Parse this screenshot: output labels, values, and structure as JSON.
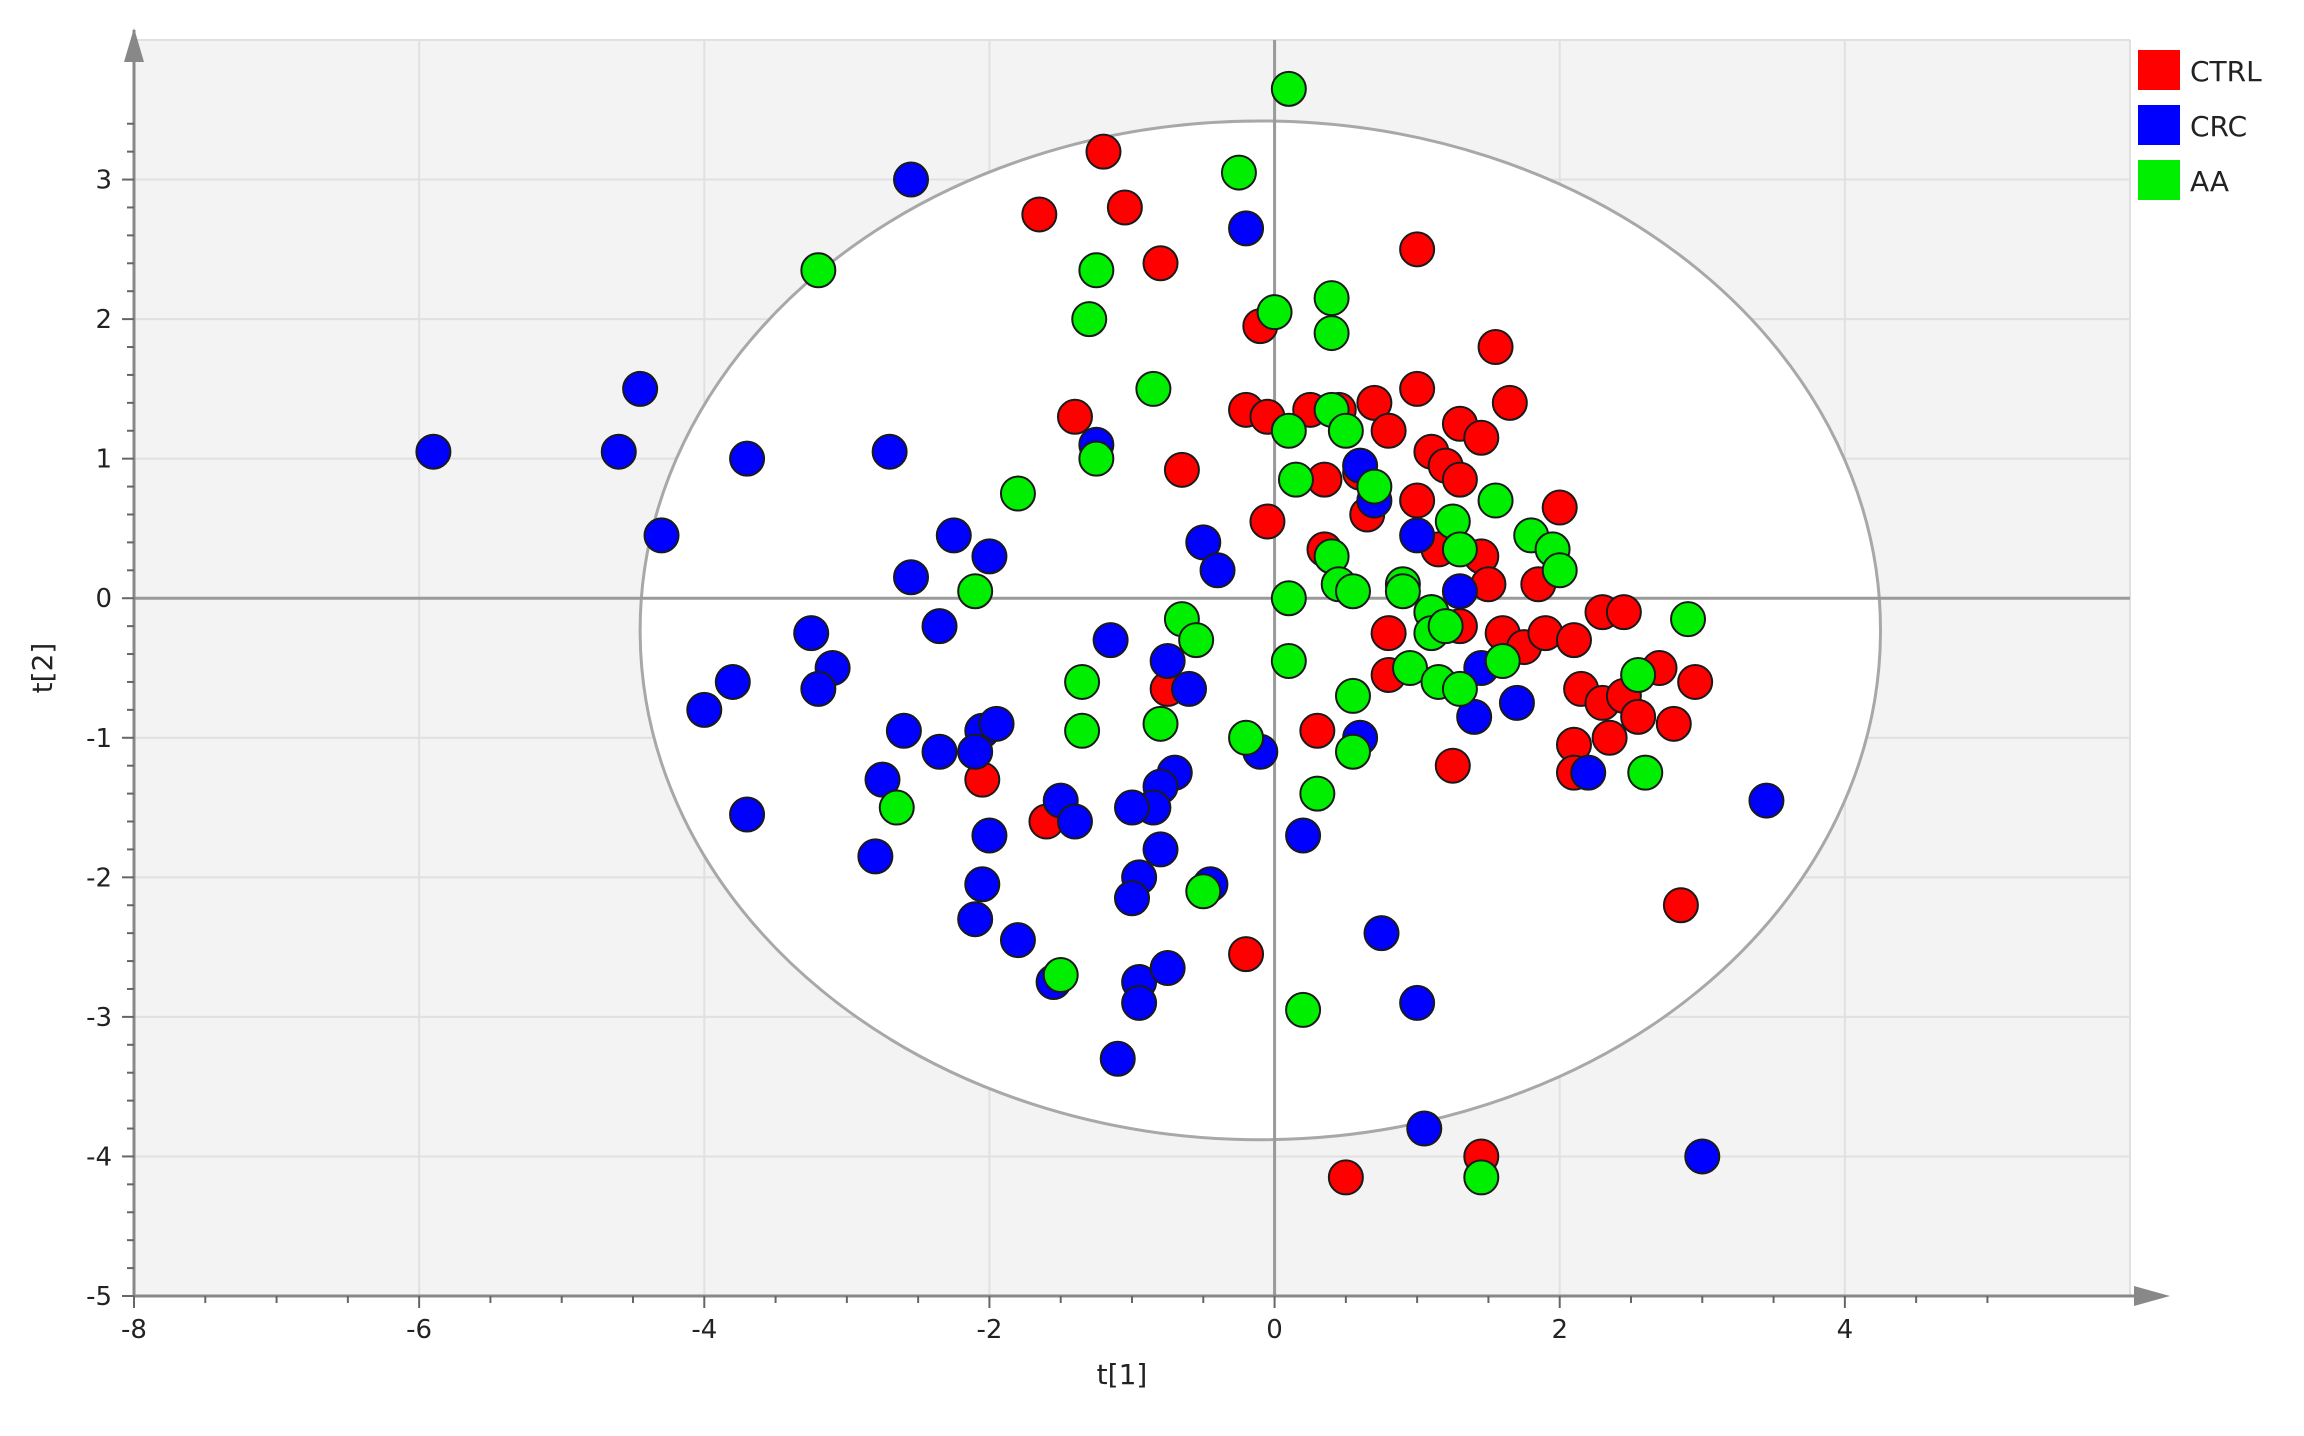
{
  "chart_data": {
    "type": "scatter",
    "title": "",
    "xlabel": "t[1]",
    "ylabel": "t[2]",
    "xlim": [
      -8,
      6
    ],
    "ylim": [
      -5,
      4
    ],
    "xticks": [
      -8,
      -6,
      -4,
      -2,
      0,
      2,
      4
    ],
    "yticks": [
      -5,
      -4,
      -3,
      -2,
      -1,
      0,
      1,
      2,
      3
    ],
    "grid": true,
    "legend_position": "top-right",
    "confidence_ellipse": {
      "center": [
        -0.1,
        -0.23
      ],
      "radius_x": 4.35,
      "radius_y": 3.65
    },
    "series": [
      {
        "name": "CTRL",
        "color": "#ff0000",
        "points": [
          [
            -1.2,
            3.2
          ],
          [
            -1.65,
            2.75
          ],
          [
            -1.05,
            2.8
          ],
          [
            -0.8,
            2.4
          ],
          [
            1.0,
            2.5
          ],
          [
            -0.1,
            1.95
          ],
          [
            -1.4,
            1.3
          ],
          [
            -0.65,
            0.92
          ],
          [
            -0.2,
            1.35
          ],
          [
            -0.05,
            1.3
          ],
          [
            0.25,
            1.35
          ],
          [
            0.45,
            1.35
          ],
          [
            0.7,
            1.4
          ],
          [
            0.8,
            1.2
          ],
          [
            1.0,
            1.5
          ],
          [
            1.1,
            1.05
          ],
          [
            1.2,
            0.95
          ],
          [
            1.3,
            1.25
          ],
          [
            1.45,
            1.15
          ],
          [
            1.55,
            1.8
          ],
          [
            1.65,
            1.4
          ],
          [
            1.3,
            0.85
          ],
          [
            0.35,
            0.85
          ],
          [
            0.6,
            0.9
          ],
          [
            0.65,
            0.6
          ],
          [
            1.0,
            0.7
          ],
          [
            -0.05,
            0.55
          ],
          [
            0.35,
            0.35
          ],
          [
            1.15,
            0.35
          ],
          [
            1.45,
            0.3
          ],
          [
            1.5,
            0.1
          ],
          [
            1.85,
            0.1
          ],
          [
            2.0,
            0.65
          ],
          [
            1.1,
            -0.1
          ],
          [
            0.8,
            -0.25
          ],
          [
            1.3,
            -0.2
          ],
          [
            1.6,
            -0.25
          ],
          [
            1.75,
            -0.35
          ],
          [
            1.9,
            -0.25
          ],
          [
            2.1,
            -0.3
          ],
          [
            2.15,
            -0.65
          ],
          [
            2.3,
            -0.1
          ],
          [
            2.45,
            -0.1
          ],
          [
            2.3,
            -0.75
          ],
          [
            2.45,
            -0.7
          ],
          [
            2.55,
            -0.85
          ],
          [
            2.7,
            -0.5
          ],
          [
            2.95,
            -0.6
          ],
          [
            2.8,
            -0.9
          ],
          [
            2.1,
            -1.05
          ],
          [
            2.35,
            -1.0
          ],
          [
            2.1,
            -1.25
          ],
          [
            0.8,
            -0.55
          ],
          [
            1.25,
            -1.2
          ],
          [
            0.3,
            -0.95
          ],
          [
            -0.75,
            -0.65
          ],
          [
            -2.05,
            -1.3
          ],
          [
            -1.6,
            -1.6
          ],
          [
            -0.2,
            -2.55
          ],
          [
            2.85,
            -2.2
          ],
          [
            1.45,
            -4.0
          ],
          [
            0.5,
            -4.15
          ]
        ]
      },
      {
        "name": "CRC",
        "color": "#0000ff",
        "points": [
          [
            -2.55,
            3.0
          ],
          [
            -0.2,
            2.65
          ],
          [
            -4.45,
            1.5
          ],
          [
            -5.9,
            1.05
          ],
          [
            -4.6,
            1.05
          ],
          [
            -3.7,
            1.0
          ],
          [
            -2.7,
            1.05
          ],
          [
            -1.25,
            1.1
          ],
          [
            -4.3,
            0.45
          ],
          [
            -2.25,
            0.45
          ],
          [
            -2.0,
            0.3
          ],
          [
            -2.55,
            0.15
          ],
          [
            -0.5,
            0.4
          ],
          [
            -0.4,
            0.2
          ],
          [
            0.6,
            0.95
          ],
          [
            0.7,
            0.7
          ],
          [
            1.0,
            0.45
          ],
          [
            1.3,
            0.05
          ],
          [
            -2.35,
            -0.2
          ],
          [
            -3.25,
            -0.25
          ],
          [
            -1.15,
            -0.3
          ],
          [
            -0.75,
            -0.45
          ],
          [
            -3.8,
            -0.6
          ],
          [
            -3.1,
            -0.5
          ],
          [
            -3.2,
            -0.65
          ],
          [
            -0.6,
            -0.65
          ],
          [
            -4.0,
            -0.8
          ],
          [
            -2.6,
            -0.95
          ],
          [
            -2.05,
            -0.95
          ],
          [
            -1.95,
            -0.9
          ],
          [
            -2.35,
            -1.1
          ],
          [
            -2.1,
            -1.1
          ],
          [
            -0.1,
            -1.1
          ],
          [
            -2.75,
            -1.3
          ],
          [
            -0.7,
            -1.25
          ],
          [
            -0.8,
            -1.35
          ],
          [
            -1.5,
            -1.45
          ],
          [
            -0.85,
            -1.5
          ],
          [
            -1.0,
            -1.5
          ],
          [
            -1.4,
            -1.6
          ],
          [
            -3.7,
            -1.55
          ],
          [
            -2.0,
            -1.7
          ],
          [
            -2.8,
            -1.85
          ],
          [
            -0.8,
            -1.8
          ],
          [
            -0.95,
            -2.0
          ],
          [
            -0.45,
            -2.05
          ],
          [
            -2.05,
            -2.05
          ],
          [
            -1.0,
            -2.15
          ],
          [
            -2.1,
            -2.3
          ],
          [
            -1.8,
            -2.45
          ],
          [
            -1.55,
            -2.75
          ],
          [
            -0.95,
            -2.75
          ],
          [
            -0.75,
            -2.65
          ],
          [
            -0.95,
            -2.9
          ],
          [
            -1.1,
            -3.3
          ],
          [
            0.2,
            -1.7
          ],
          [
            0.6,
            -1.0
          ],
          [
            1.45,
            -0.5
          ],
          [
            1.4,
            -0.85
          ],
          [
            1.7,
            -0.75
          ],
          [
            2.2,
            -1.25
          ],
          [
            3.45,
            -1.45
          ],
          [
            0.75,
            -2.4
          ],
          [
            1.0,
            -2.9
          ],
          [
            1.05,
            -3.8
          ],
          [
            3.0,
            -4.0
          ]
        ]
      },
      {
        "name": "AA",
        "color": "#00ee00",
        "points": [
          [
            0.1,
            3.65
          ],
          [
            -0.25,
            3.05
          ],
          [
            -3.2,
            2.35
          ],
          [
            -1.25,
            2.35
          ],
          [
            -1.3,
            2.0
          ],
          [
            0.0,
            2.05
          ],
          [
            0.4,
            2.15
          ],
          [
            0.4,
            1.9
          ],
          [
            -0.85,
            1.5
          ],
          [
            0.1,
            1.2
          ],
          [
            0.4,
            1.35
          ],
          [
            0.5,
            1.2
          ],
          [
            -1.25,
            1.0
          ],
          [
            -1.8,
            0.75
          ],
          [
            0.15,
            0.85
          ],
          [
            0.7,
            0.8
          ],
          [
            1.25,
            0.55
          ],
          [
            1.55,
            0.7
          ],
          [
            1.8,
            0.45
          ],
          [
            1.95,
            0.35
          ],
          [
            2.0,
            0.2
          ],
          [
            0.4,
            0.3
          ],
          [
            0.45,
            0.1
          ],
          [
            0.55,
            0.05
          ],
          [
            0.9,
            0.1
          ],
          [
            0.9,
            0.05
          ],
          [
            1.3,
            0.35
          ],
          [
            -2.1,
            0.05
          ],
          [
            0.1,
            0.0
          ],
          [
            1.1,
            -0.1
          ],
          [
            1.1,
            -0.25
          ],
          [
            1.2,
            -0.2
          ],
          [
            1.6,
            -0.45
          ],
          [
            2.9,
            -0.15
          ],
          [
            -0.65,
            -0.15
          ],
          [
            -0.55,
            -0.3
          ],
          [
            0.1,
            -0.45
          ],
          [
            0.95,
            -0.5
          ],
          [
            1.15,
            -0.6
          ],
          [
            1.3,
            -0.65
          ],
          [
            2.55,
            -0.55
          ],
          [
            -1.35,
            -0.6
          ],
          [
            0.55,
            -0.7
          ],
          [
            -1.35,
            -0.95
          ],
          [
            -0.8,
            -0.9
          ],
          [
            -0.2,
            -1.0
          ],
          [
            0.55,
            -1.1
          ],
          [
            2.6,
            -1.25
          ],
          [
            0.3,
            -1.4
          ],
          [
            -2.65,
            -1.5
          ],
          [
            -0.5,
            -2.1
          ],
          [
            -1.5,
            -2.7
          ],
          [
            0.2,
            -2.95
          ],
          [
            1.45,
            -4.15
          ]
        ]
      }
    ],
    "legend": [
      {
        "label": "CTRL",
        "color": "#ff0000"
      },
      {
        "label": "CRC",
        "color": "#0000ff"
      },
      {
        "label": "AA",
        "color": "#00ee00"
      }
    ]
  }
}
